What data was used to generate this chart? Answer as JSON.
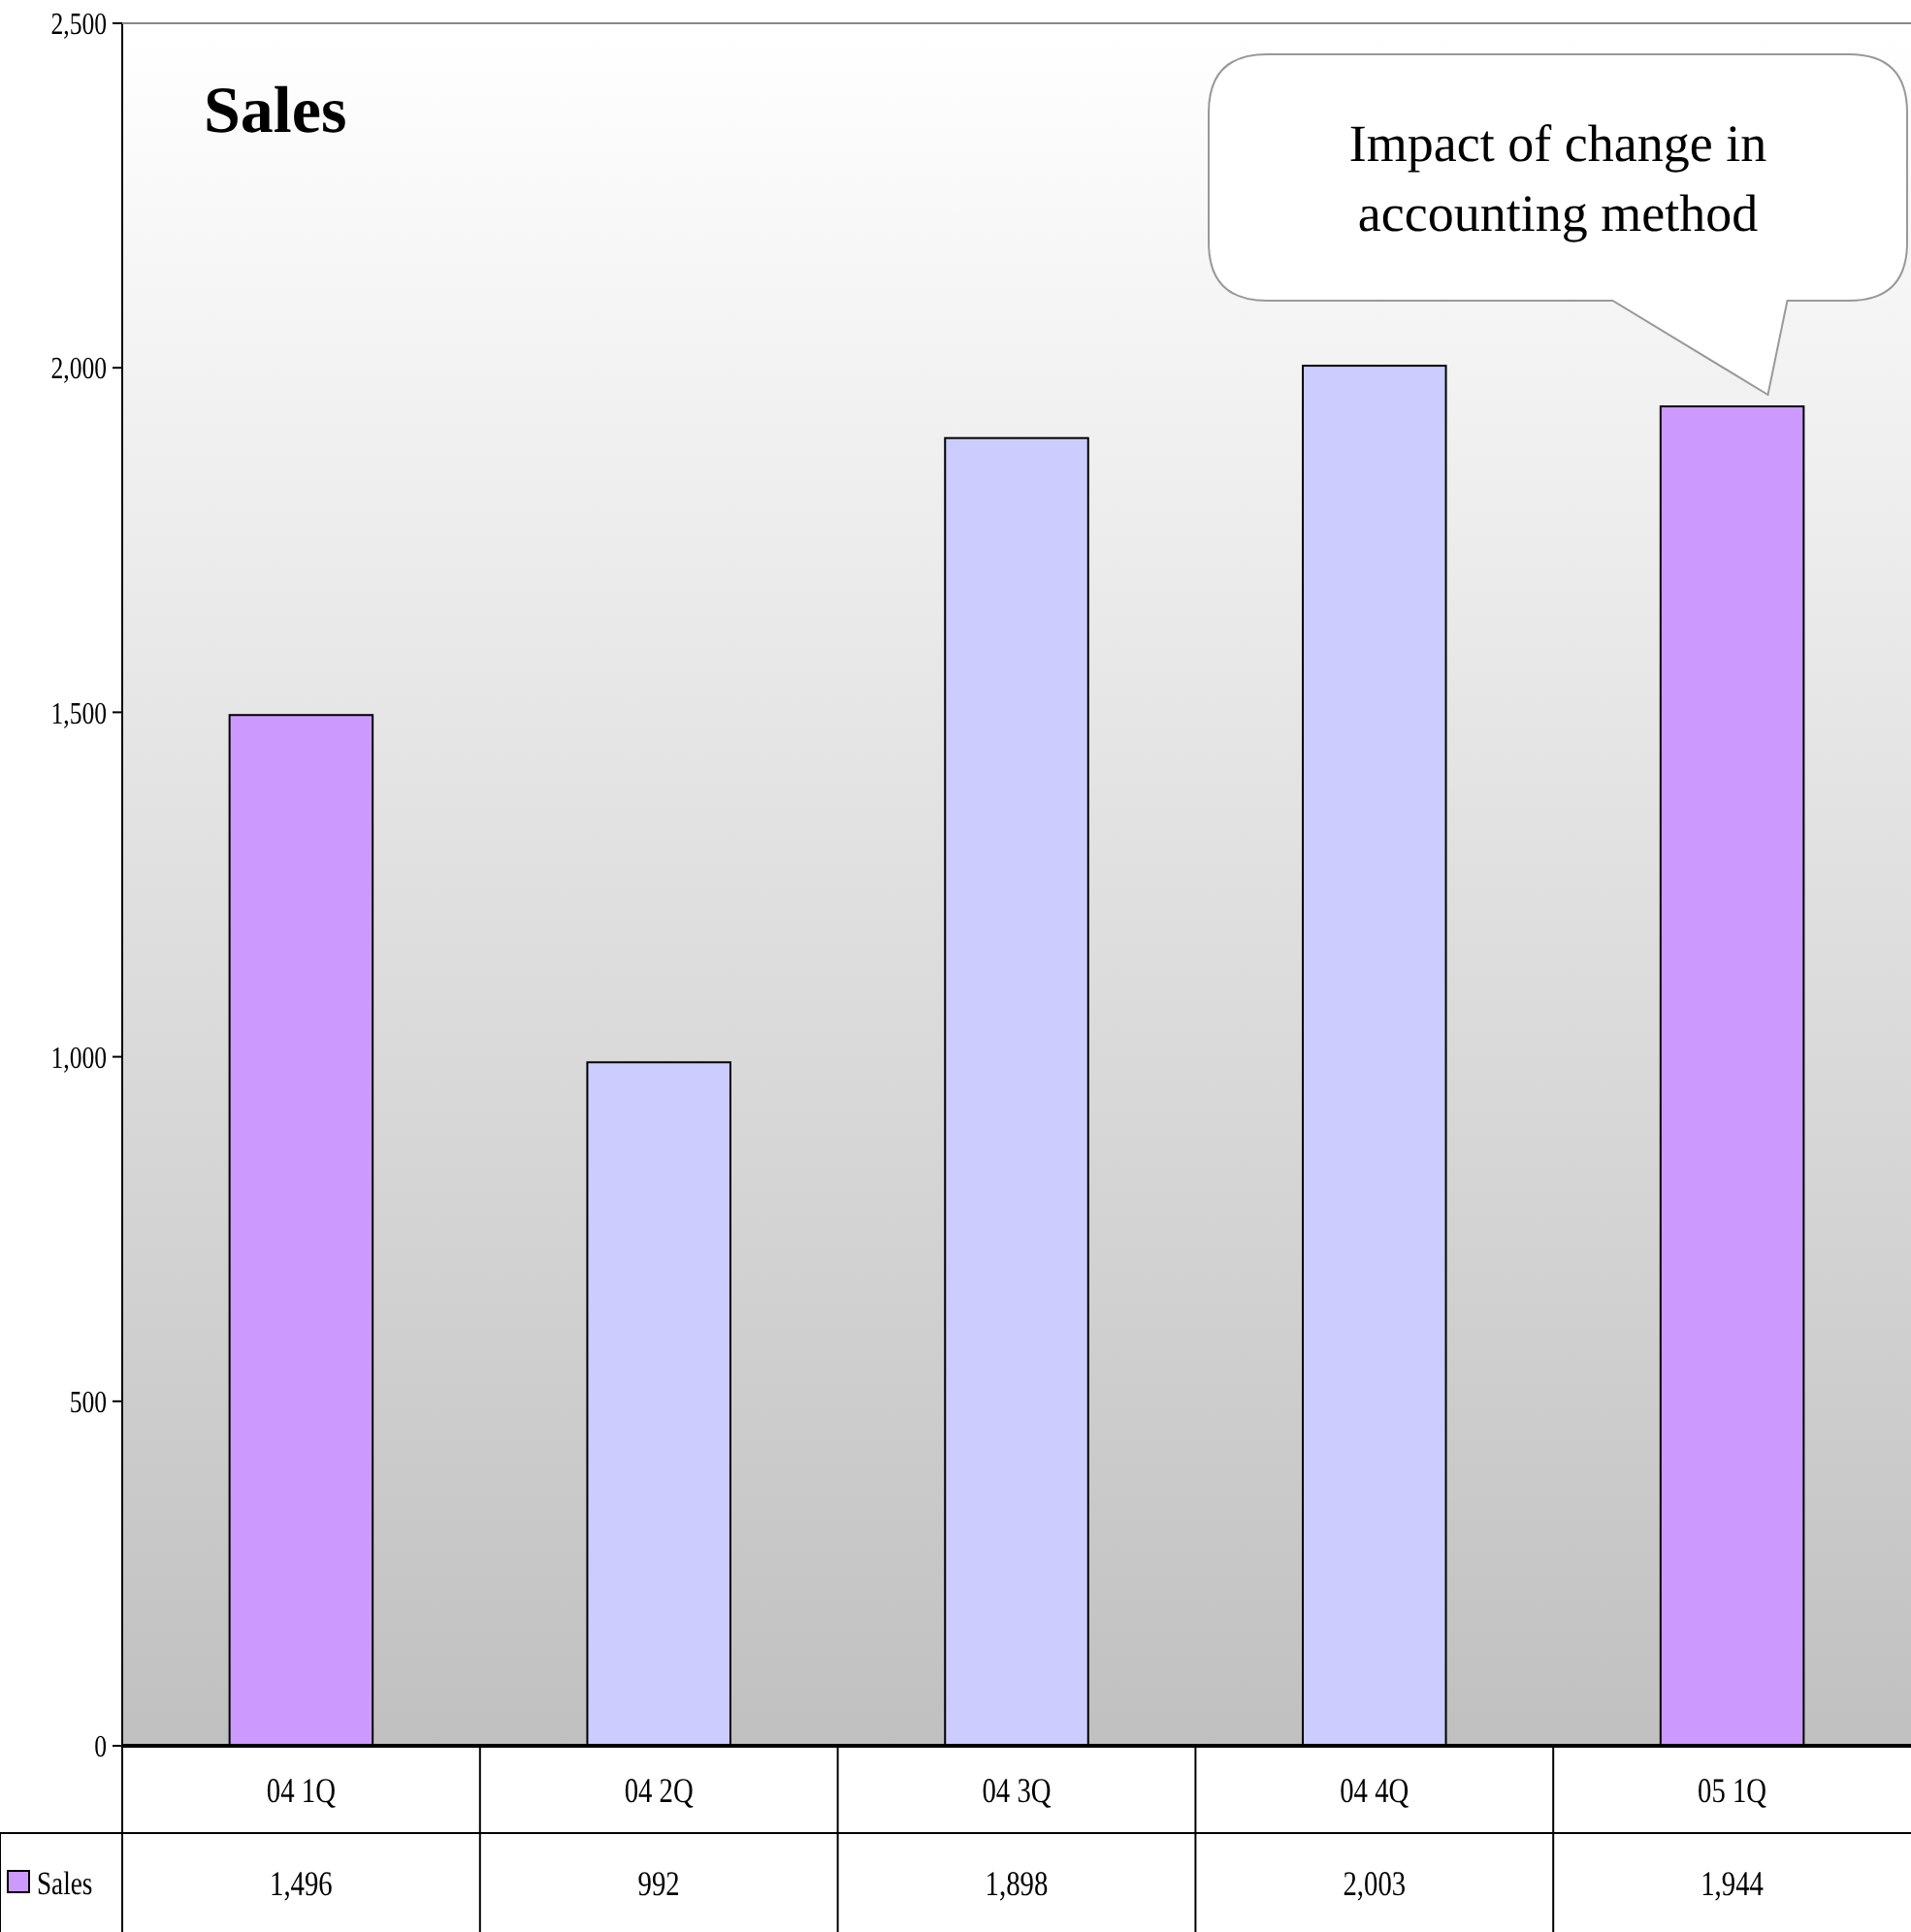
{
  "chart_data": {
    "type": "bar",
    "title": "Sales",
    "categories": [
      "04 1Q",
      "04 2Q",
      "04 3Q",
      "04 4Q",
      "05 1Q"
    ],
    "series": [
      {
        "name": "Sales",
        "color": "#cc99ff",
        "colors": [
          "#cc99ff",
          "#ccccff",
          "#ccccff",
          "#ccccff",
          "#cc99ff"
        ],
        "values": [
          1496,
          992,
          1898,
          2003,
          1944
        ],
        "value_labels": [
          "1,496",
          "992",
          "1,898",
          "2,003",
          "1,944"
        ]
      }
    ],
    "ylim": [
      0,
      2500
    ],
    "yticks": [
      0,
      500,
      {
        "value": 1000,
        "label": "1,000"
      },
      {
        "value": 1500,
        "label": "1,500"
      },
      {
        "value": 2000,
        "label": "2,000"
      },
      {
        "value": 2500,
        "label": "2,500"
      }
    ],
    "grid": false,
    "legend": "bottom",
    "annotations": [
      "Impact of change in accounting method"
    ]
  }
}
